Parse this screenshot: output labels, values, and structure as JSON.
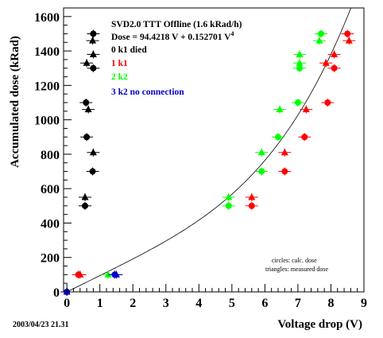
{
  "chart_data": {
    "type": "scatter",
    "xlabel": "Voltage drop (V)",
    "ylabel": "Accumulated dose (kRad)",
    "xlim": [
      -0.1,
      9.0
    ],
    "ylim": [
      0,
      1650
    ],
    "x_ticks": [
      0,
      1,
      2,
      3,
      4,
      5,
      6,
      7,
      8,
      9
    ],
    "y_ticks": [
      0,
      200,
      400,
      600,
      800,
      1000,
      1200,
      1400,
      1600
    ],
    "grid": false,
    "legend_position": "top-left",
    "fit_title": "SVD2.0 TTT Offline (1.6 kRad/h)",
    "fit_formula": "Dose = 94.4218 V + 0.152701 V",
    "fit_formula_exponent": "4",
    "fit": {
      "a": 94.4218,
      "b": 0.152701,
      "power": 4,
      "x_range": [
        0,
        8.6
      ]
    },
    "note_circles": "circles: calc. dose",
    "note_triangles": "triangles: measured dose",
    "timestamp": "2003/04/23   21.31",
    "series": [
      {
        "name": "0 k1 died",
        "color": "#000000",
        "circles": [
          [
            0.55,
            500
          ],
          [
            0.6,
            900
          ],
          [
            0.58,
            1100
          ],
          [
            0.78,
            700
          ],
          [
            0.8,
            1300
          ],
          [
            0.8,
            1500
          ]
        ],
        "triangles": [
          [
            0.55,
            550
          ],
          [
            0.65,
            1060
          ],
          [
            0.6,
            1330
          ],
          [
            0.8,
            810
          ],
          [
            0.8,
            1380
          ],
          [
            0.78,
            1460
          ]
        ]
      },
      {
        "name": "1 k1",
        "color": "#ff0000",
        "circles": [
          [
            0.35,
            100
          ],
          [
            5.6,
            500
          ],
          [
            6.6,
            700
          ],
          [
            7.2,
            900
          ],
          [
            7.9,
            1100
          ],
          [
            8.1,
            1300
          ],
          [
            8.5,
            1500
          ]
        ],
        "triangles": [
          [
            0.4,
            100
          ],
          [
            5.6,
            550
          ],
          [
            6.6,
            810
          ],
          [
            7.25,
            1060
          ],
          [
            7.85,
            1330
          ],
          [
            8.1,
            1380
          ],
          [
            8.55,
            1460
          ]
        ]
      },
      {
        "name": "2 k2",
        "color": "#00ff00",
        "circles": [
          [
            4.9,
            500
          ],
          [
            5.9,
            700
          ],
          [
            6.4,
            900
          ],
          [
            7.0,
            1100
          ],
          [
            7.05,
            1300
          ],
          [
            7.7,
            1500
          ]
        ],
        "triangles": [
          [
            1.25,
            100
          ],
          [
            4.9,
            550
          ],
          [
            5.9,
            810
          ],
          [
            6.45,
            1060
          ],
          [
            7.05,
            1330
          ],
          [
            7.05,
            1380
          ],
          [
            7.65,
            1460
          ]
        ]
      },
      {
        "name": "3 k2 no connection",
        "color": "#0000cc",
        "circles": [
          [
            0,
            0
          ],
          [
            1.45,
            100
          ]
        ],
        "triangles": [
          [
            0,
            0
          ],
          [
            1.5,
            100
          ]
        ]
      }
    ]
  }
}
